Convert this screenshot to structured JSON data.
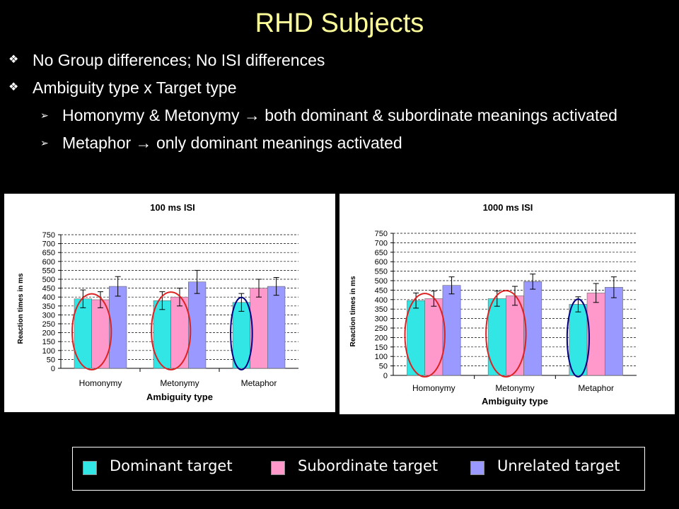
{
  "slide": {
    "title": "RHD Subjects",
    "bullets": [
      {
        "marker": "❖",
        "text": "No Group differences; No ISI differences"
      },
      {
        "marker": "❖",
        "text": "Ambiguity type x Target type"
      }
    ],
    "sub_bullets": [
      {
        "marker": "➢",
        "text": "Homonymy & Metonymy → both dominant & subordinate meanings activated"
      },
      {
        "marker": "➢",
        "text": "Metaphor → only dominant meanings activated"
      }
    ]
  },
  "legend": [
    {
      "label": "Dominant target",
      "color": "#33e6e6"
    },
    {
      "label": "Subordinate target",
      "color": "#ff99cc"
    },
    {
      "label": "Unrelated target",
      "color": "#9999ff"
    }
  ],
  "chart_data": [
    {
      "type": "bar",
      "title": "100 ms ISI",
      "xlabel": "Ambiguity type",
      "ylabel": "Reaction times in ms",
      "ylim": [
        0,
        750
      ],
      "yticks": [
        0,
        50,
        100,
        150,
        200,
        250,
        300,
        350,
        400,
        450,
        500,
        550,
        600,
        650,
        700,
        750
      ],
      "grid": true,
      "categories": [
        "Homonymy",
        "Metonymy",
        "Metaphor"
      ],
      "series": [
        {
          "name": "Dominant target",
          "color": "#33e6e6",
          "values": [
            390,
            380,
            370
          ],
          "errors": [
            50,
            50,
            50
          ]
        },
        {
          "name": "Subordinate target",
          "color": "#ff99cc",
          "values": [
            385,
            400,
            450
          ],
          "errors": [
            45,
            50,
            50
          ]
        },
        {
          "name": "Unrelated target",
          "color": "#9999ff",
          "values": [
            460,
            485,
            460
          ],
          "errors": [
            55,
            65,
            50
          ]
        }
      ],
      "annotations": [
        {
          "type": "ellipse",
          "category": "Homonymy",
          "covers": [
            "Dominant target",
            "Subordinate target"
          ],
          "color": "#dd2222"
        },
        {
          "type": "ellipse",
          "category": "Metonymy",
          "covers": [
            "Dominant target",
            "Subordinate target"
          ],
          "color": "#dd2222"
        },
        {
          "type": "ellipse",
          "category": "Metaphor",
          "covers": [
            "Dominant target"
          ],
          "color": "#000080"
        }
      ]
    },
    {
      "type": "bar",
      "title": "1000 ms ISI",
      "xlabel": "Ambiguity type",
      "ylabel": "Reaction times in ms",
      "ylim": [
        0,
        750
      ],
      "yticks": [
        0,
        50,
        100,
        150,
        200,
        250,
        300,
        350,
        400,
        450,
        500,
        550,
        600,
        650,
        700,
        750
      ],
      "grid": true,
      "categories": [
        "Homonymy",
        "Metonymy",
        "Metaphor"
      ],
      "series": [
        {
          "name": "Dominant target",
          "color": "#33e6e6",
          "values": [
            395,
            405,
            375
          ],
          "errors": [
            40,
            40,
            40
          ]
        },
        {
          "name": "Subordinate target",
          "color": "#ff99cc",
          "values": [
            405,
            420,
            435
          ],
          "errors": [
            40,
            50,
            50
          ]
        },
        {
          "name": "Unrelated target",
          "color": "#9999ff",
          "values": [
            475,
            495,
            465
          ],
          "errors": [
            45,
            40,
            55
          ]
        }
      ],
      "annotations": [
        {
          "type": "ellipse",
          "category": "Homonymy",
          "covers": [
            "Dominant target",
            "Subordinate target"
          ],
          "color": "#dd2222"
        },
        {
          "type": "ellipse",
          "category": "Metonymy",
          "covers": [
            "Dominant target",
            "Subordinate target"
          ],
          "color": "#dd2222"
        },
        {
          "type": "ellipse",
          "category": "Metaphor",
          "covers": [
            "Dominant target"
          ],
          "color": "#000080"
        }
      ]
    }
  ]
}
